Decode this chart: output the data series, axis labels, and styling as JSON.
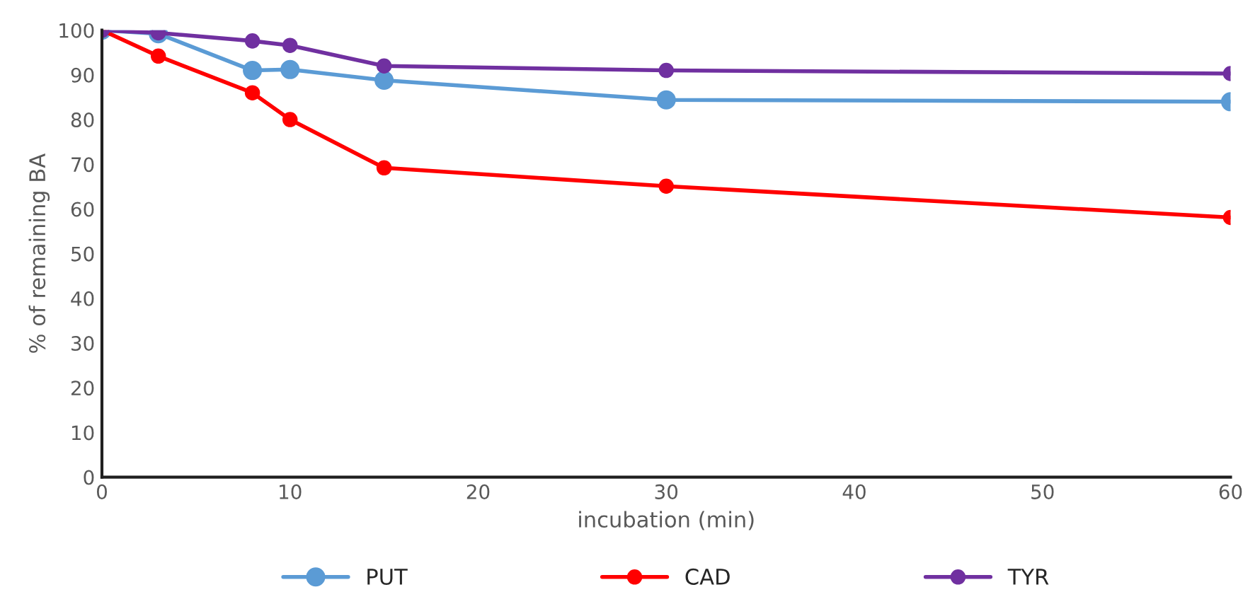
{
  "chart_data": {
    "type": "line",
    "xlabel": "incubation (min)",
    "ylabel": "% of remaining BA",
    "x": [
      0,
      3,
      8,
      10,
      15,
      30,
      60
    ],
    "series": [
      {
        "name": "PUT",
        "color": "#5b9bd5",
        "values": [
          100,
          99.2,
          91,
          91.2,
          88.8,
          84.4,
          84
        ]
      },
      {
        "name": "CAD",
        "color": "#ff0000",
        "values": [
          100,
          94.2,
          86,
          80,
          69.2,
          65.1,
          58.1
        ]
      },
      {
        "name": "TYR",
        "color": "#7030a0",
        "values": [
          100,
          99.4,
          97.6,
          96.6,
          92,
          91,
          90.3
        ]
      }
    ],
    "xlim": [
      0,
      60
    ],
    "xticks": [
      0,
      10,
      20,
      30,
      40,
      50,
      60
    ],
    "ylim": [
      0,
      100
    ],
    "yticks": [
      0,
      10,
      20,
      30,
      40,
      50,
      60,
      70,
      80,
      90,
      100
    ],
    "grid": false,
    "legend": "bottom",
    "marker": "circle",
    "line_style": "solid"
  }
}
